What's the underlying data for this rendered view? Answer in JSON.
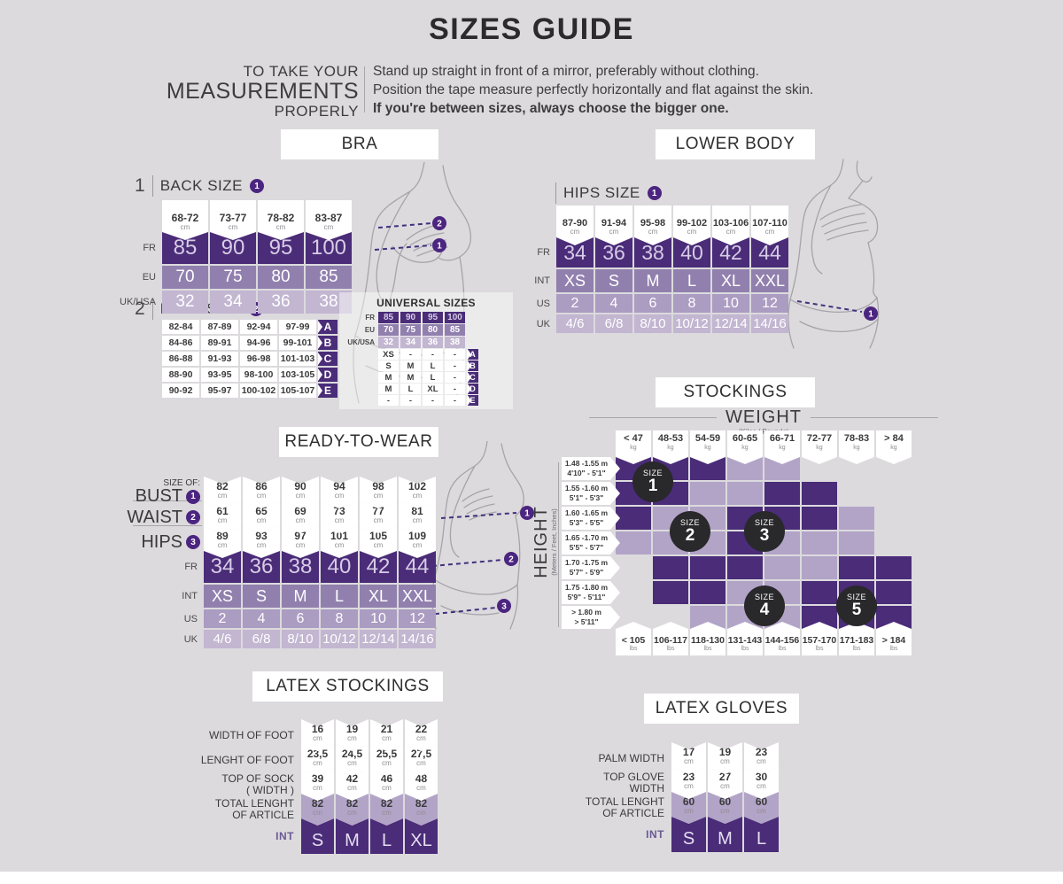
{
  "page": {
    "bg": "#dcdadd",
    "title": "SIZES GUIDE"
  },
  "intro": {
    "left": [
      "TO TAKE YOUR",
      "MEASUREMENTS",
      "PROPERLY"
    ],
    "lines": [
      "Stand up straight in front of a mirror, preferably without clothing.",
      "Position the tape measure perfectly horizontally and flat against the skin.",
      "If you're between sizes, always choose the bigger one."
    ]
  },
  "colors": {
    "dark": "#4a2c78",
    "medium": "#9180ae",
    "light": "#ab9cc2",
    "lighter": "#c2b6d1",
    "cell_light": "#b2a4c7",
    "badge": "#29282a",
    "marker": "#4b2580"
  },
  "bra": {
    "section_label": "BRA",
    "back_size": {
      "index": "1",
      "title": "BACK SIZE",
      "marker": "1",
      "headers": [
        "68-72",
        "73-77",
        "78-82",
        "83-87"
      ],
      "header_unit": "cm",
      "rows": [
        {
          "label": "FR",
          "shade": "dark",
          "values": [
            "85",
            "90",
            "95",
            "100"
          ]
        },
        {
          "label": "EU",
          "shade": "medium",
          "values": [
            "70",
            "75",
            "80",
            "85"
          ]
        },
        {
          "label": "UK/USA",
          "shade": "lighter",
          "values": [
            "32",
            "34",
            "36",
            "38"
          ]
        }
      ]
    },
    "bust_size": {
      "index": "2",
      "title": "BUST SIZE",
      "marker": "2",
      "rows": [
        {
          "values": [
            "82-84",
            "87-89",
            "92-94",
            "97-99"
          ],
          "letter": "A"
        },
        {
          "values": [
            "84-86",
            "89-91",
            "94-96",
            "99-101"
          ],
          "letter": "B"
        },
        {
          "values": [
            "86-88",
            "91-93",
            "96-98",
            "101-103"
          ],
          "letter": "C"
        },
        {
          "values": [
            "88-90",
            "93-95",
            "98-100",
            "103-105"
          ],
          "letter": "D"
        },
        {
          "values": [
            "90-92",
            "95-97",
            "100-102",
            "105-107"
          ],
          "letter": "E"
        }
      ]
    },
    "universal": {
      "title": "UNIVERSAL SIZES",
      "size_rows": [
        {
          "label": "FR",
          "shade": "dark",
          "values": [
            "85",
            "90",
            "95",
            "100"
          ]
        },
        {
          "label": "EU",
          "shade": "medium",
          "values": [
            "70",
            "75",
            "80",
            "85"
          ]
        },
        {
          "label": "UK/USA",
          "shade": "lighter",
          "values": [
            "32",
            "34",
            "36",
            "38"
          ]
        }
      ],
      "letter_rows": [
        {
          "values": [
            "XS",
            "-",
            "-",
            "-"
          ],
          "letter": "A"
        },
        {
          "values": [
            "S",
            "M",
            "L",
            "-"
          ],
          "letter": "B"
        },
        {
          "values": [
            "M",
            "M",
            "L",
            "-"
          ],
          "letter": "C"
        },
        {
          "values": [
            "M",
            "L",
            "XL",
            "-"
          ],
          "letter": "D"
        },
        {
          "values": [
            "-",
            "-",
            "-",
            "-"
          ],
          "letter": "E"
        }
      ]
    }
  },
  "lower_body": {
    "section_label": "LOWER BODY",
    "hips": {
      "title": "HIPS SIZE",
      "marker": "1",
      "headers": [
        "87-90",
        "91-94",
        "95-98",
        "99-102",
        "103-106",
        "107-110"
      ],
      "header_unit": "cm",
      "rows": [
        {
          "label": "FR",
          "shade": "dark",
          "values": [
            "34",
            "36",
            "38",
            "40",
            "42",
            "44"
          ]
        },
        {
          "label": "INT",
          "shade": "medium",
          "values": [
            "XS",
            "S",
            "M",
            "L",
            "XL",
            "XXL"
          ]
        },
        {
          "label": "US",
          "shade": "light",
          "values": [
            "2",
            "4",
            "6",
            "8",
            "10",
            "12"
          ]
        },
        {
          "label": "UK",
          "shade": "lighter",
          "values": [
            "4/6",
            "6/8",
            "8/10",
            "10/12",
            "12/14",
            "14/16"
          ]
        }
      ]
    }
  },
  "rtw": {
    "section_label": "READY-TO-WEAR",
    "measure_rows": [
      {
        "prefix": "SIZE OF:",
        "label": "BUST",
        "marker": "1",
        "unit": "cm",
        "values": [
          "82",
          "86",
          "90",
          "94",
          "98",
          "102"
        ]
      },
      {
        "prefix": "",
        "label": "WAIST",
        "marker": "2",
        "unit": "cm",
        "values": [
          "61",
          "65",
          "69",
          "73",
          "77",
          "81"
        ]
      },
      {
        "prefix": "",
        "label": "HIPS",
        "marker": "3",
        "unit": "cm",
        "values": [
          "89",
          "93",
          "97",
          "101",
          "105",
          "109"
        ]
      }
    ],
    "size_rows": [
      {
        "label": "FR",
        "shade": "dark",
        "values": [
          "34",
          "36",
          "38",
          "40",
          "42",
          "44"
        ]
      },
      {
        "label": "INT",
        "shade": "medium",
        "values": [
          "XS",
          "S",
          "M",
          "L",
          "XL",
          "XXL"
        ]
      },
      {
        "label": "US",
        "shade": "light",
        "values": [
          "2",
          "4",
          "6",
          "8",
          "10",
          "12"
        ]
      },
      {
        "label": "UK",
        "shade": "lighter",
        "values": [
          "4/6",
          "6/8",
          "8/10",
          "10/12",
          "12/14",
          "14/16"
        ]
      }
    ]
  },
  "stockings": {
    "section_label": "STOCKINGS",
    "weight_label": "WEIGHT",
    "weight_sub": "(Kilos / Pounds)",
    "height_label": "HEIGHT",
    "height_sub": "(Meters / Feet, Inches)",
    "kg_unit": "kg",
    "lbs_unit": "lbs",
    "kg_cols": [
      "< 47",
      "48-53",
      "54-59",
      "60-65",
      "66-71",
      "72-77",
      "78-83",
      "> 84"
    ],
    "lbs_cols": [
      "< 105",
      "106-117",
      "118-130",
      "131-143",
      "144-156",
      "157-170",
      "171-183",
      "> 184"
    ],
    "height_rows": [
      {
        "m": "1.48 -1.55 m",
        "ft": "4'10\" - 5'1\""
      },
      {
        "m": "1.55 -1.60 m",
        "ft": "5'1\" - 5'3\""
      },
      {
        "m": "1.60 -1.65 m",
        "ft": "5'3\" - 5'5\""
      },
      {
        "m": "1.65 -1.70 m",
        "ft": "5'5\" - 5'7\""
      },
      {
        "m": "1.70 -1.75 m",
        "ft": "5'7\" - 5'9\""
      },
      {
        "m": "1.75 -1.80 m",
        "ft": "5'9\" - 5'11\""
      },
      {
        "m": "> 1.80 m",
        "ft": "> 5'11\""
      }
    ],
    "grid": [
      [
        "d",
        "d",
        "d",
        "l",
        "l",
        "",
        "",
        ""
      ],
      [
        "d",
        "d",
        "l",
        "l",
        "d",
        "d",
        "",
        ""
      ],
      [
        "d",
        "l",
        "l",
        "d",
        "d",
        "d",
        "l",
        ""
      ],
      [
        "l",
        "l",
        "l",
        "d",
        "l",
        "l",
        "l",
        ""
      ],
      [
        "",
        "d",
        "d",
        "d",
        "l",
        "l",
        "d",
        "d"
      ],
      [
        "",
        "d",
        "d",
        "l",
        "l",
        "d",
        "d",
        "d"
      ],
      [
        "",
        "",
        "l",
        "l",
        "l",
        "d",
        "d",
        "d"
      ]
    ],
    "badges": [
      {
        "label": "SIZE",
        "num": "1"
      },
      {
        "label": "SIZE",
        "num": "2"
      },
      {
        "label": "SIZE",
        "num": "3"
      },
      {
        "label": "SIZE",
        "num": "4"
      },
      {
        "label": "SIZE",
        "num": "5"
      }
    ]
  },
  "latex_stockings": {
    "section_label": "LATEX STOCKINGS",
    "rows": [
      {
        "label": "WIDTH OF FOOT",
        "shade": "white",
        "unit": "cm",
        "values": [
          "16",
          "19",
          "21",
          "22"
        ]
      },
      {
        "label": "LENGHT OF FOOT",
        "shade": "white",
        "unit": "cm",
        "values": [
          "23,5",
          "24,5",
          "25,5",
          "27,5"
        ]
      },
      {
        "label": "TOP OF SOCK\n( WIDTH )",
        "shade": "white",
        "unit": "cm",
        "values": [
          "39",
          "42",
          "46",
          "48"
        ]
      },
      {
        "label": "TOTAL LENGHT\nOF ARTICLE",
        "shade": "light",
        "unit": "cm",
        "values": [
          "82",
          "82",
          "82",
          "82"
        ]
      },
      {
        "label": "INT",
        "shade": "dark",
        "unit": "",
        "values": [
          "S",
          "M",
          "L",
          "XL"
        ]
      }
    ]
  },
  "latex_gloves": {
    "section_label": "LATEX GLOVES",
    "rows": [
      {
        "label": "PALM WIDTH",
        "shade": "white",
        "unit": "cm",
        "values": [
          "17",
          "19",
          "23"
        ]
      },
      {
        "label": "TOP GLOVE\nWIDTH",
        "shade": "white",
        "unit": "cm",
        "values": [
          "23",
          "27",
          "30"
        ]
      },
      {
        "label": "TOTAL LENGHT\nOF ARTICLE",
        "shade": "light",
        "unit": "cm",
        "values": [
          "60",
          "60",
          "60"
        ]
      },
      {
        "label": "INT",
        "shade": "dark",
        "unit": "",
        "values": [
          "S",
          "M",
          "L"
        ]
      }
    ]
  },
  "illustrations": {
    "bra_markers": [
      "2",
      "1"
    ],
    "rtw_markers": [
      "1",
      "2",
      "3"
    ],
    "lower_markers": [
      "1"
    ]
  }
}
